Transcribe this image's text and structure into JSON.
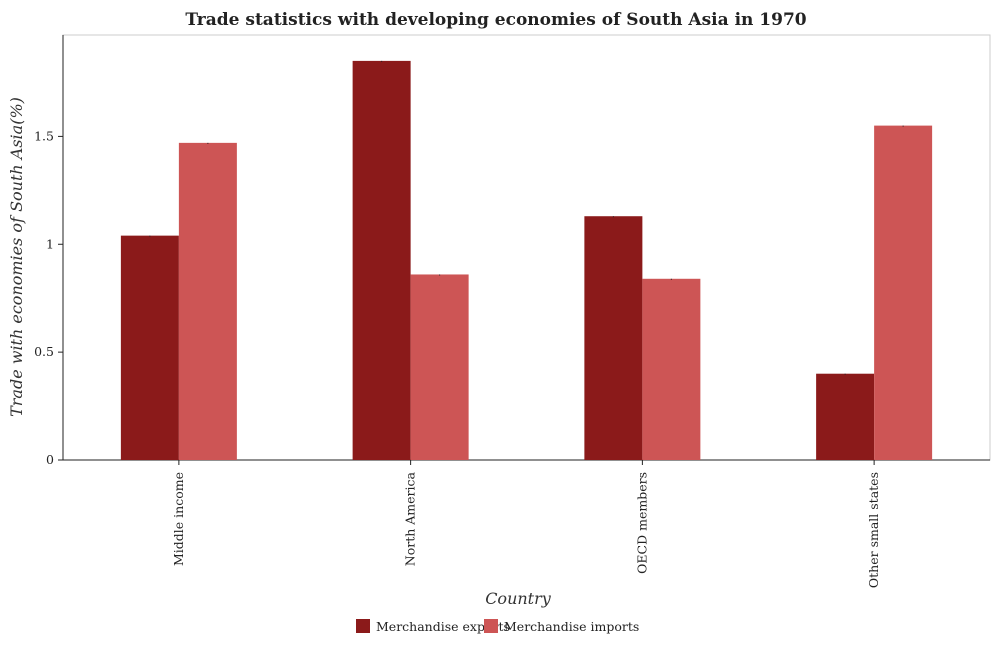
{
  "chart_data": {
    "type": "bar",
    "title": "Trade statistics with developing economies of South Asia in 1970",
    "xlabel": "Country",
    "ylabel": "Trade with economies of South Asia(%)",
    "categories": [
      "Middle income",
      "North America",
      "OECD members",
      "Other small states"
    ],
    "series": [
      {
        "name": "Merchandise exports",
        "color": "#8b1a1a",
        "values": [
          1.04,
          1.85,
          1.13,
          0.4
        ]
      },
      {
        "name": "Merchandise imports",
        "color": "#cd5555",
        "values": [
          1.47,
          0.86,
          0.84,
          1.55
        ]
      }
    ],
    "ylim": [
      0,
      1.97
    ],
    "yticks": [
      0,
      0.5,
      1,
      1.5
    ],
    "ytick_labels": [
      "0",
      "0.5",
      "1",
      "1.5"
    ],
    "grid": false,
    "legend_position": "bottom"
  }
}
